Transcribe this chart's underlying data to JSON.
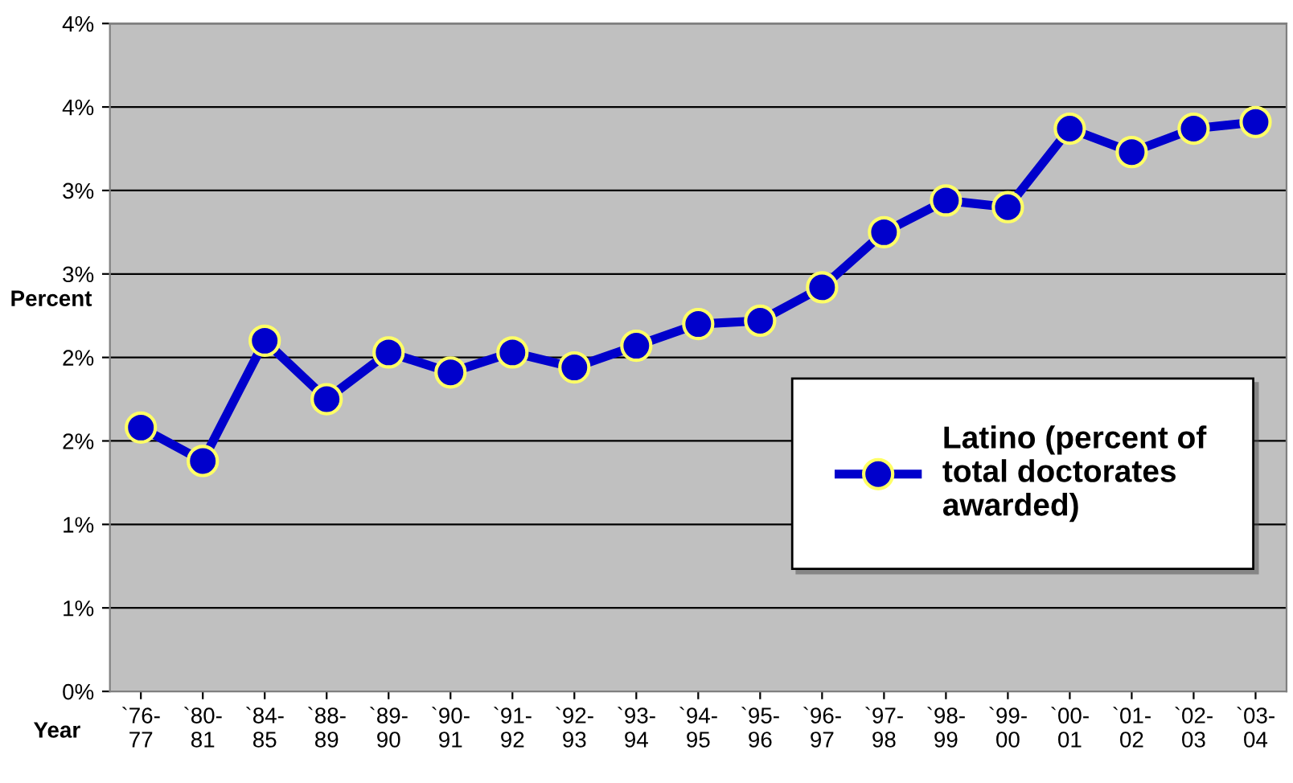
{
  "chart_data": {
    "type": "line",
    "xlabel": "Year",
    "ylabel": "Percent",
    "categories": [
      "`76-\n77",
      "`80-\n81",
      "`84-\n85",
      "`88-\n89",
      "`89-\n90",
      "`90-\n91",
      "`91-\n92",
      "`92-\n93",
      "`93-\n94",
      "`94-\n95",
      "`95-\n96",
      "`96-\n97",
      "`97-\n98",
      "`98-\n99",
      "`99-\n00",
      "`00-\n01",
      "`01-\n02",
      "`02-\n03",
      "`03-\n04"
    ],
    "series": [
      {
        "name": "Latino (percent of\ntotal doctorates\nawarded)",
        "color": "#0000cc",
        "values": [
          1.58,
          1.38,
          2.1,
          1.75,
          2.03,
          1.91,
          2.03,
          1.94,
          2.07,
          2.2,
          2.22,
          2.42,
          2.75,
          2.94,
          2.9,
          3.37,
          3.23,
          3.37,
          3.41
        ]
      }
    ],
    "ylim": [
      0,
      4
    ],
    "yticks": [
      {
        "value": 0,
        "label": "0%"
      },
      {
        "value": 0.5,
        "label": "1%"
      },
      {
        "value": 1,
        "label": "1%"
      },
      {
        "value": 1.5,
        "label": "2%"
      },
      {
        "value": 2,
        "label": "2%"
      },
      {
        "value": 2.5,
        "label": "3%"
      },
      {
        "value": 3,
        "label": "3%"
      },
      {
        "value": 3.5,
        "label": "4%"
      },
      {
        "value": 4,
        "label": "4%"
      }
    ],
    "grid": "y",
    "legend": "bottom right",
    "marker": "circle",
    "line_style": "solid"
  }
}
